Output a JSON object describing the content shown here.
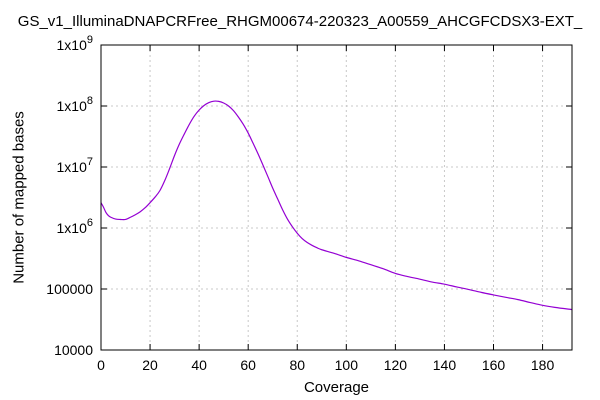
{
  "chart_data": {
    "type": "line",
    "title": "GS_v1_IlluminaDNAPCRFree_RHGM00674-220323_A00559_AHCGFCDSX3-EXT_",
    "xlabel": "Coverage",
    "ylabel": "Number of mapped bases",
    "xlim": [
      0,
      192
    ],
    "ylim": [
      10000,
      1000000000
    ],
    "y_scale": "log",
    "grid": true,
    "legend": "none",
    "x_ticks": [
      0,
      20,
      40,
      60,
      80,
      100,
      120,
      140,
      160,
      180
    ],
    "y_ticks": [
      {
        "value": 10000,
        "base": "10000",
        "exp": ""
      },
      {
        "value": 100000,
        "base": "100000",
        "exp": ""
      },
      {
        "value": 1000000,
        "base": "1x10",
        "exp": "6"
      },
      {
        "value": 10000000,
        "base": "1x10",
        "exp": "7"
      },
      {
        "value": 100000000,
        "base": "1x10",
        "exp": "8"
      },
      {
        "value": 1000000000,
        "base": "1x10",
        "exp": "9"
      }
    ],
    "series": [
      {
        "color": "#9400d3",
        "x": [
          0,
          1,
          2,
          3,
          4,
          6,
          8,
          10,
          12,
          14,
          16,
          18,
          20,
          22,
          24,
          26,
          28,
          30,
          32,
          34,
          36,
          38,
          40,
          42,
          44,
          46,
          48,
          50,
          52,
          54,
          56,
          58,
          60,
          62,
          64,
          66,
          68,
          70,
          72,
          74,
          76,
          78,
          80,
          82,
          84,
          86,
          88,
          90,
          95,
          100,
          105,
          110,
          115,
          120,
          125,
          130,
          135,
          140,
          145,
          150,
          155,
          160,
          165,
          170,
          175,
          180,
          185,
          192
        ],
        "y": [
          2600000,
          2200000,
          1800000,
          1600000,
          1500000,
          1400000,
          1380000,
          1380000,
          1500000,
          1650000,
          1850000,
          2150000,
          2600000,
          3200000,
          4100000,
          6000000,
          9500000,
          15500000,
          24000000,
          35000000,
          50000000,
          68000000,
          86000000,
          102000000,
          114000000,
          120000000,
          119000000,
          112000000,
          100000000,
          84000000,
          66000000,
          50000000,
          36000000,
          24500000,
          16500000,
          10800000,
          7000000,
          4500000,
          3000000,
          2000000,
          1400000,
          1050000,
          820000,
          670000,
          580000,
          520000,
          475000,
          440000,
          385000,
          330000,
          290000,
          250000,
          215000,
          180000,
          160000,
          145000,
          130000,
          120000,
          108000,
          98000,
          88000,
          80000,
          73000,
          67000,
          60000,
          54000,
          50000,
          46000
        ]
      }
    ]
  }
}
